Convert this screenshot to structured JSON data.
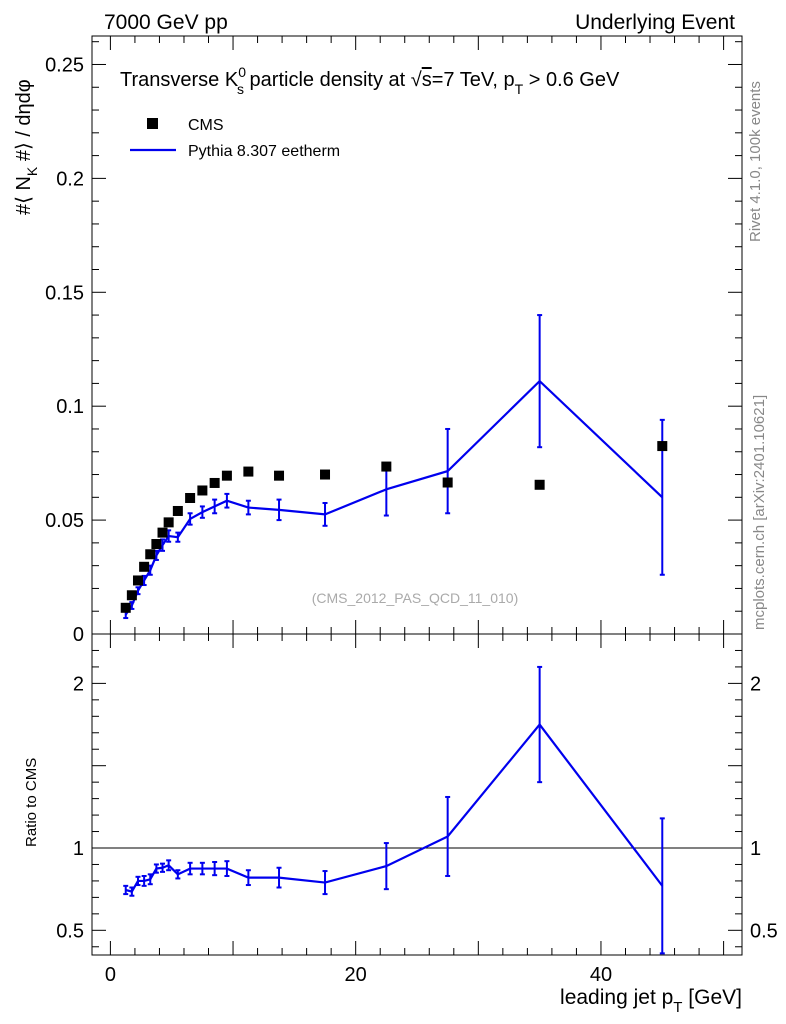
{
  "header": {
    "left": "7000 GeV pp",
    "right": "Underlying Event"
  },
  "side_labels": {
    "rivet": "Rivet 4.1.0,  100k events",
    "mcplots": "mcplots.cern.ch [arXiv:2401.10621]"
  },
  "chart_data": {
    "type": "scatter",
    "title_parts": {
      "prefix": "Transverse K",
      "sup": "0",
      "sub": "s",
      "mid": " particle density at ",
      "sqrt_sym": "√",
      "sqrt_arg": "s",
      "energy": "=7 TeV, p",
      "pt_sub": "T",
      "cut": " > 0.6 GeV"
    },
    "ylabel_parts": {
      "a": "#⟨ N",
      "sub": "K",
      "b": " #⟩ / dηdφ"
    },
    "xlabel_parts": {
      "a": "leading jet p",
      "sub": "T",
      "b": " [GeV]"
    },
    "watermark": "(CMS_2012_PAS_QCD_11_010)",
    "xlim": [
      -1.5,
      51.5
    ],
    "main_ylim": [
      0,
      0.2625
    ],
    "main_yticks": [
      0,
      0.05,
      0.1,
      0.15,
      0.2,
      0.25
    ],
    "main_ytick_labels": [
      "0",
      "0.05",
      "0.1",
      "0.15",
      "0.2",
      "0.25"
    ],
    "xticks": [
      0,
      20,
      40
    ],
    "xtick_labels": [
      "0",
      "20",
      "40"
    ],
    "legend": {
      "position": "top-left",
      "data_label": "CMS",
      "mc_label": "Pythia 8.307 eetherm"
    },
    "data_series": {
      "name": "CMS",
      "x": [
        1.25,
        1.75,
        2.25,
        2.75,
        3.25,
        3.75,
        4.25,
        4.75,
        5.5,
        6.5,
        7.5,
        8.5,
        9.5,
        11.25,
        13.75,
        17.5,
        22.5,
        27.5,
        35.0,
        45.0
      ],
      "y": [
        0.0115,
        0.017,
        0.0235,
        0.0295,
        0.035,
        0.0395,
        0.0445,
        0.049,
        0.054,
        0.0597,
        0.063,
        0.0663,
        0.0695,
        0.0713,
        0.0695,
        0.07,
        0.0735,
        0.0665,
        0.0655,
        0.0825
      ]
    },
    "mc_series": {
      "name": "Pythia 8.307 eetherm",
      "x": [
        1.25,
        1.75,
        2.25,
        2.75,
        3.25,
        3.75,
        4.25,
        4.75,
        5.5,
        6.5,
        7.5,
        8.5,
        9.5,
        11.25,
        13.75,
        17.5,
        22.5,
        27.5,
        35.0,
        45.0
      ],
      "y": [
        0.0085,
        0.0125,
        0.019,
        0.0235,
        0.028,
        0.0345,
        0.039,
        0.043,
        0.0425,
        0.0505,
        0.0535,
        0.056,
        0.0585,
        0.0555,
        0.0545,
        0.0525,
        0.0635,
        0.0715,
        0.111,
        0.06
      ],
      "err": [
        0.0015,
        0.0015,
        0.0015,
        0.002,
        0.002,
        0.002,
        0.0025,
        0.0025,
        0.002,
        0.0025,
        0.0025,
        0.003,
        0.003,
        0.003,
        0.0045,
        0.005,
        0.0115,
        0.0185,
        0.029,
        0.034
      ]
    },
    "ratio": {
      "ylabel": "Ratio to CMS",
      "ylim": [
        0.35,
        2.3
      ],
      "yticks": [
        0.5,
        1,
        2
      ],
      "ytick_labels": [
        "0.5",
        "1",
        "2"
      ],
      "values": [
        0.745,
        0.735,
        0.8,
        0.8,
        0.81,
        0.875,
        0.88,
        0.895,
        0.84,
        0.875,
        0.875,
        0.875,
        0.875,
        0.82,
        0.82,
        0.79,
        0.89,
        1.07,
        1.75,
        0.77
      ],
      "err": [
        0.025,
        0.025,
        0.025,
        0.03,
        0.03,
        0.025,
        0.025,
        0.03,
        0.025,
        0.035,
        0.035,
        0.04,
        0.045,
        0.045,
        0.06,
        0.07,
        0.14,
        0.24,
        0.35,
        0.41
      ]
    }
  }
}
